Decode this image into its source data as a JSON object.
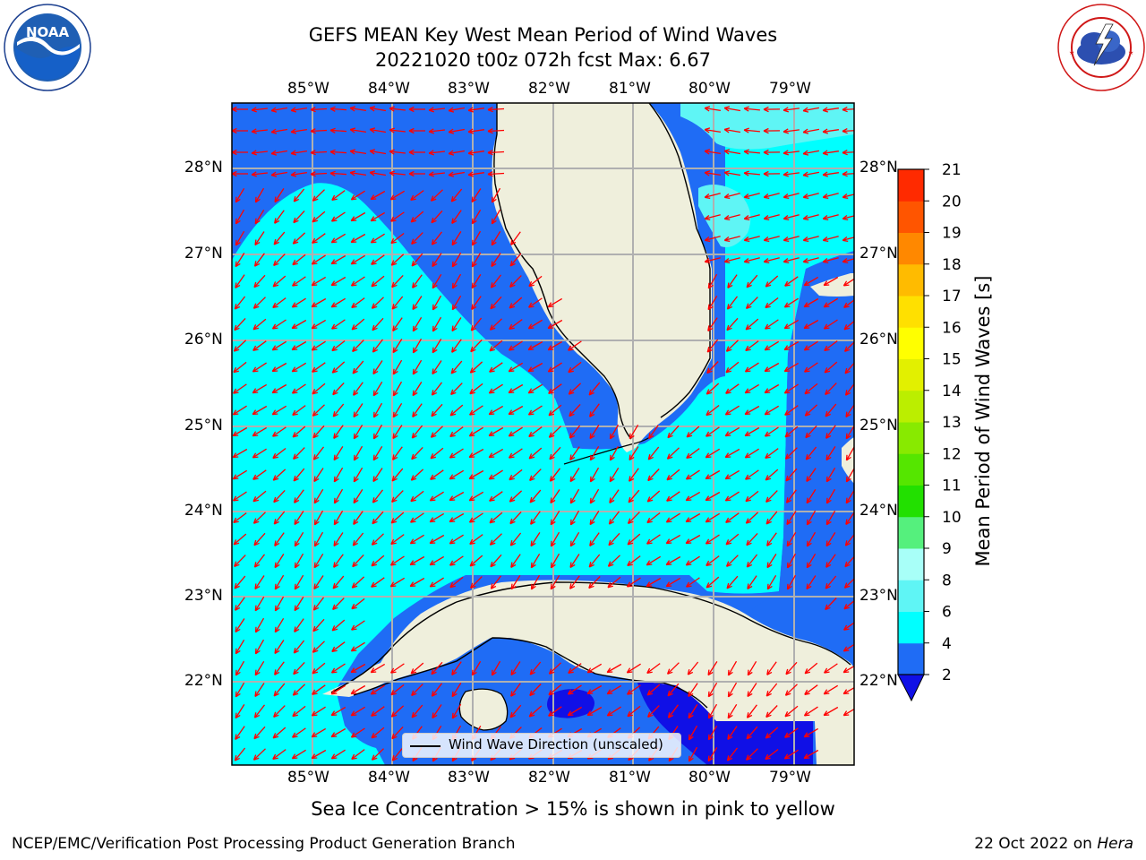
{
  "header": {
    "title_line1": "GEFS MEAN Key West Mean Period of Wind Waves",
    "title_line2": "20221020 t00z 072h fcst   Max: 6.67"
  },
  "logos": {
    "left": {
      "name": "NOAA",
      "text": "NOAA",
      "ring_text": "NATIONAL OCEANIC AND ATMOSPHERIC ADMINISTRATION · U.S. DEPARTMENT OF COMMERCE"
    },
    "right": {
      "name": "National Weather Service",
      "ring_text": "NATIONAL WEATHER SERVICE"
    }
  },
  "map": {
    "lon_ticks": [
      "85°W",
      "84°W",
      "83°W",
      "82°W",
      "81°W",
      "80°W",
      "79°W"
    ],
    "lat_ticks": [
      "28°N",
      "27°N",
      "26°N",
      "25°N",
      "24°N",
      "23°N",
      "22°N"
    ],
    "lon_range": [
      -86.0,
      -78.25
    ],
    "lat_range": [
      21.05,
      28.78
    ],
    "colors": {
      "band_2_4": "#1f6cf5",
      "band_4_6": "#00ffff",
      "band_6_8": "#5ff5f5",
      "below_2": "#1010e6",
      "land": "#efefdc",
      "arrow": "#ff0000",
      "grid": "#b0b0b0"
    },
    "legend_label": "Wind Wave Direction (unscaled)"
  },
  "colorbar": {
    "label": "Mean Period of Wind Waves [s]",
    "ticks": [
      "2",
      "4",
      "6",
      "8",
      "9",
      "10",
      "11",
      "12",
      "13",
      "14",
      "15",
      "16",
      "17",
      "18",
      "19",
      "20",
      "21"
    ],
    "segment_colors": [
      "#1f6cf5",
      "#00ffff",
      "#5ff5f5",
      "#a8fff8",
      "#55f07d",
      "#22e000",
      "#55e600",
      "#88ea00",
      "#bbee00",
      "#e2f000",
      "#ffff00",
      "#ffe000",
      "#ffbb00",
      "#ff8800",
      "#ff5500",
      "#ff2a00",
      "#ff0000"
    ],
    "extend_color": "#1010e6"
  },
  "notes": {
    "sea_ice": "Sea Ice Concentration > 15% is shown in pink to yellow",
    "footer_left": "NCEP/EMC/Verification Post Processing Product Generation Branch",
    "footer_right_date": "22 Oct 2022 on",
    "footer_right_host": "Hera"
  }
}
